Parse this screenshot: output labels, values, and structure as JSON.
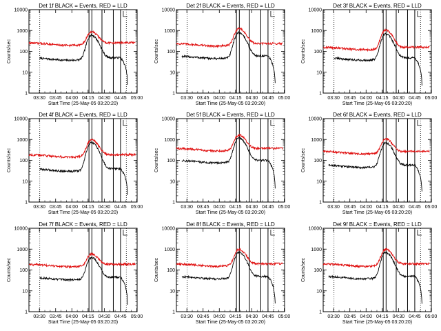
{
  "chart_data": [
    {
      "type": "line",
      "title": "Det 1f BLACK = Events, RED = LLD",
      "xlabel": "Start Time (25-May-05 03:20:20)",
      "ylabel": "Counts/sec",
      "yscale": "log",
      "ylim": [
        1,
        10000
      ],
      "xlim": [
        0,
        6000
      ],
      "x_ticks": [
        "03:30",
        "03:45",
        "04:00",
        "04:15",
        "04:30",
        "04:45",
        "05:00"
      ],
      "y_ticks": [
        "1",
        "10",
        "100",
        "1000",
        "10000"
      ],
      "series": [
        {
          "color": "#000000",
          "base": 50,
          "peak": 600
        },
        {
          "color": "#e01010",
          "base": 260,
          "peak": 900
        }
      ],
      "events_start": 600,
      "events_end": 5480
    },
    {
      "type": "line",
      "title": "Det 2f BLACK = Events, RED = LLD",
      "xlabel": "Start Time (25-May-05 03:20:20)",
      "ylabel": "Counts/sec",
      "yscale": "log",
      "ylim": [
        1,
        10000
      ],
      "xlim": [
        0,
        6000
      ],
      "x_ticks": [
        "03:30",
        "03:45",
        "04:00",
        "04:15",
        "04:30",
        "04:45",
        "05:00"
      ],
      "y_ticks": [
        "1",
        "10",
        "100",
        "1000",
        "10000"
      ],
      "series": [
        {
          "color": "#000000",
          "base": 60,
          "peak": 800
        },
        {
          "color": "#e01010",
          "base": 240,
          "peak": 1300
        }
      ],
      "events_start": 300,
      "events_end": 5480
    },
    {
      "type": "line",
      "title": "Det 3f BLACK = Events, RED = LLD",
      "xlabel": "Start Time (25-May-05 03:20:20)",
      "ylabel": "Counts/sec",
      "yscale": "log",
      "ylim": [
        1,
        10000
      ],
      "xlim": [
        0,
        6000
      ],
      "x_ticks": [
        "03:30",
        "03:45",
        "04:00",
        "04:15",
        "04:30",
        "04:45",
        "05:00"
      ],
      "y_ticks": [
        "1",
        "10",
        "100",
        "1000",
        "10000"
      ],
      "series": [
        {
          "color": "#000000",
          "base": 50,
          "peak": 700
        },
        {
          "color": "#e01010",
          "base": 160,
          "peak": 1100
        }
      ],
      "events_start": 600,
      "events_end": 5480
    },
    {
      "type": "line",
      "title": "Det 4f BLACK = Events, RED = LLD",
      "xlabel": "Start Time (25-May-05 03:20:20)",
      "ylabel": "Counts/sec",
      "yscale": "log",
      "ylim": [
        1,
        10000
      ],
      "xlim": [
        0,
        6000
      ],
      "x_ticks": [
        "03:30",
        "03:45",
        "04:00",
        "04:15",
        "04:30",
        "04:45",
        "05:00"
      ],
      "y_ticks": [
        "1",
        "10",
        "100",
        "1000",
        "10000"
      ],
      "series": [
        {
          "color": "#000000",
          "base": 40,
          "peak": 700
        },
        {
          "color": "#e01010",
          "base": 190,
          "peak": 1000
        }
      ],
      "events_start": 600,
      "events_end": 5480
    },
    {
      "type": "line",
      "title": "Det 5f BLACK = Events, RED = LLD",
      "xlabel": "Start Time (25-May-05 03:20:20)",
      "ylabel": "Counts/sec",
      "yscale": "log",
      "ylim": [
        1,
        10000
      ],
      "xlim": [
        0,
        6000
      ],
      "x_ticks": [
        "03:30",
        "03:45",
        "04:00",
        "04:15",
        "04:30",
        "04:45",
        "05:00"
      ],
      "y_ticks": [
        "1",
        "10",
        "100",
        "1000",
        "10000"
      ],
      "series": [
        {
          "color": "#000000",
          "base": 100,
          "peak": 1200
        },
        {
          "color": "#e01010",
          "base": 380,
          "peak": 1700
        }
      ],
      "events_start": 300,
      "events_end": 5480
    },
    {
      "type": "line",
      "title": "Det 6f BLACK = Events, RED = LLD",
      "xlabel": "Start Time (25-May-05 03:20:20)",
      "ylabel": "Counts/sec",
      "yscale": "log",
      "ylim": [
        1,
        10000
      ],
      "xlim": [
        0,
        6000
      ],
      "x_ticks": [
        "03:30",
        "03:45",
        "04:00",
        "04:15",
        "04:30",
        "04:45",
        "05:00"
      ],
      "y_ticks": [
        "1",
        "10",
        "100",
        "1000",
        "10000"
      ],
      "series": [
        {
          "color": "#000000",
          "base": 60,
          "peak": 700
        },
        {
          "color": "#e01010",
          "base": 270,
          "peak": 1100
        }
      ],
      "events_start": 300,
      "events_end": 5480
    },
    {
      "type": "line",
      "title": "Det 7f BLACK = Events, RED = LLD",
      "xlabel": "Start Time (25-May-05 03:20:20)",
      "ylabel": "Counts/sec",
      "yscale": "log",
      "ylim": [
        1,
        10000
      ],
      "xlim": [
        0,
        6000
      ],
      "x_ticks": [
        "03:30",
        "03:45",
        "04:00",
        "04:15",
        "04:30",
        "04:45",
        "05:00"
      ],
      "y_ticks": [
        "1",
        "10",
        "100",
        "1000",
        "10000"
      ],
      "series": [
        {
          "color": "#000000",
          "base": 45,
          "peak": 400
        },
        {
          "color": "#e01010",
          "base": 190,
          "peak": 600
        }
      ],
      "events_start": 600,
      "events_end": 5480
    },
    {
      "type": "line",
      "title": "Det 8f BLACK = Events, RED = LLD",
      "xlabel": "Start Time (25-May-05 03:20:20)",
      "ylabel": "Counts/sec",
      "yscale": "log",
      "ylim": [
        1,
        10000
      ],
      "xlim": [
        0,
        6000
      ],
      "x_ticks": [
        "03:30",
        "03:45",
        "04:00",
        "04:15",
        "04:30",
        "04:45",
        "05:00"
      ],
      "y_ticks": [
        "1",
        "10",
        "100",
        "1000",
        "10000"
      ],
      "series": [
        {
          "color": "#000000",
          "base": 50,
          "peak": 700
        },
        {
          "color": "#e01010",
          "base": 200,
          "peak": 1000
        }
      ],
      "events_start": 300,
      "events_end": 5480
    },
    {
      "type": "line",
      "title": "Det 9f BLACK = Events, RED = LLD",
      "xlabel": "Start Time (25-May-05 03:20:20)",
      "ylabel": "Counts/sec",
      "yscale": "log",
      "ylim": [
        1,
        10000
      ],
      "xlim": [
        0,
        6000
      ],
      "x_ticks": [
        "03:30",
        "03:45",
        "04:00",
        "04:15",
        "04:30",
        "04:45",
        "05:00"
      ],
      "y_ticks": [
        "1",
        "10",
        "100",
        "1000",
        "10000"
      ],
      "series": [
        {
          "color": "#000000",
          "base": 50,
          "peak": 700
        },
        {
          "color": "#e01010",
          "base": 200,
          "peak": 1000
        }
      ],
      "events_start": 300,
      "events_end": 5480
    }
  ],
  "markers": {
    "dotted": [
      600,
      5400
    ],
    "solid": [
      3330,
      3490,
      4050,
      4680,
      5080
    ]
  }
}
